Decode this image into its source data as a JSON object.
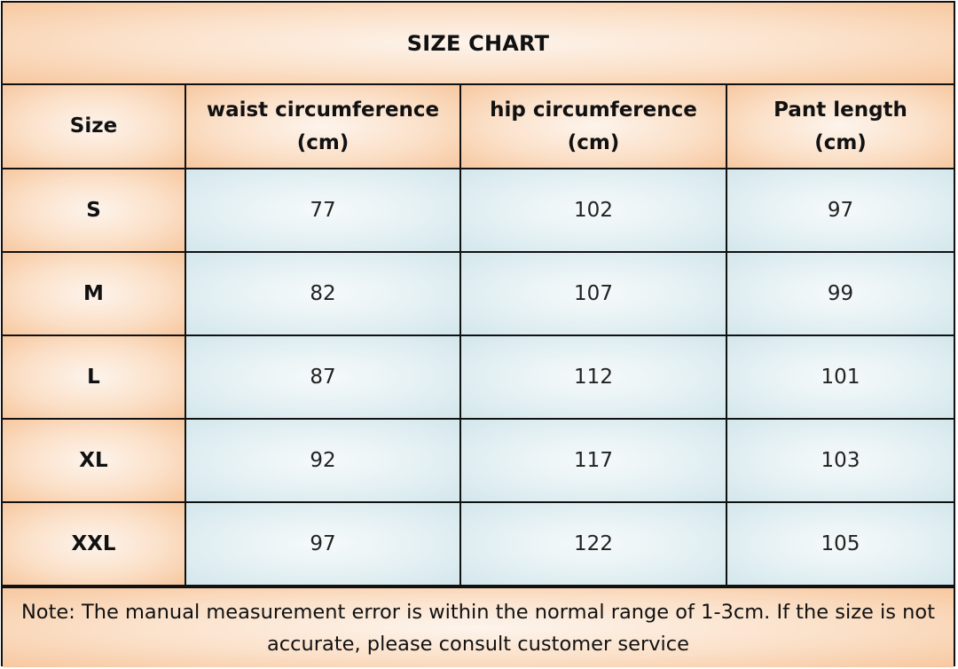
{
  "title": "SIZE CHART",
  "headers": {
    "size": "Size",
    "waist_line1": "waist circumference",
    "waist_line2": "(cm)",
    "hip_line1": "hip circumference",
    "hip_line2": "(cm)",
    "pant_line1": "Pant length",
    "pant_line2": "(cm)"
  },
  "rows": [
    {
      "size": "S",
      "waist": "77",
      "hip": "102",
      "pant": "97"
    },
    {
      "size": "M",
      "waist": "82",
      "hip": "107",
      "pant": "99"
    },
    {
      "size": "L",
      "waist": "87",
      "hip": "112",
      "pant": "101"
    },
    {
      "size": "XL",
      "waist": "92",
      "hip": "117",
      "pant": "103"
    },
    {
      "size": "XXL",
      "waist": "97",
      "hip": "122",
      "pant": "105"
    }
  ],
  "note": "Note: The manual measurement error is within the normal range of 1-3cm. If the size is not accurate, please consult customer service",
  "colors": {
    "header_bg": "#fbe0c8",
    "cell_bg": "#e4f0f3",
    "border": "#111111"
  }
}
